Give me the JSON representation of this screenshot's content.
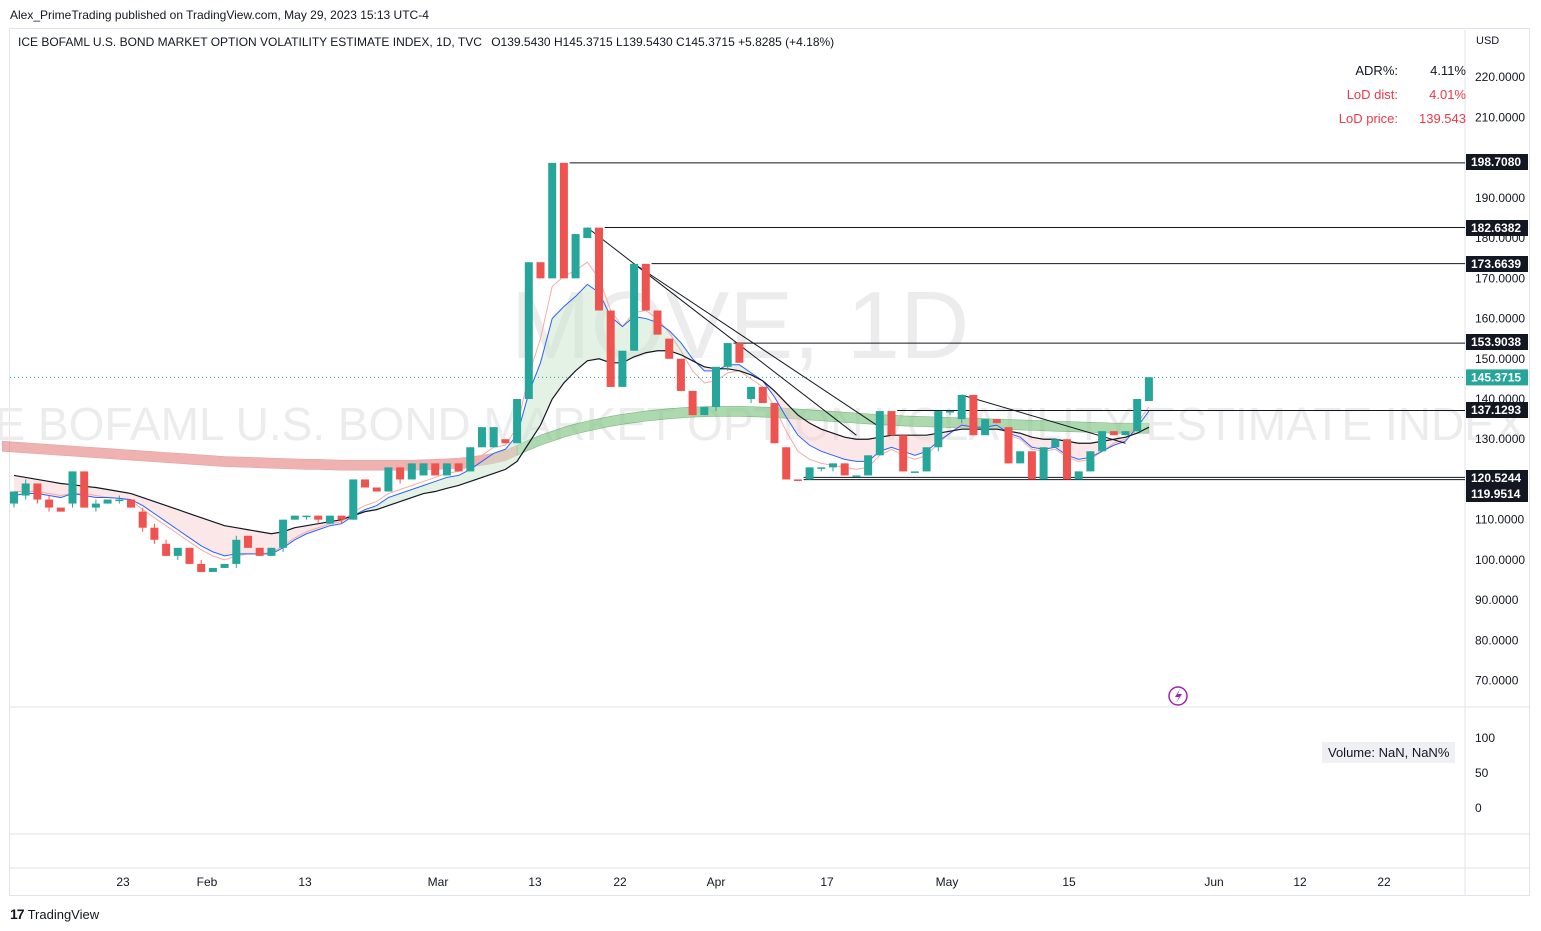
{
  "header": {
    "publisher": "Alex_PrimeTrading published on TradingView.com, May 29, 2023 15:13 UTC-4"
  },
  "legend": {
    "title": "ICE BOFAML U.S. BOND MARKET OPTION VOLATILITY ESTIMATE INDEX, 1D, TVC",
    "ohlc": "O139.5430  H145.3715  L139.5430  C145.3715  +5.8285 (+4.18%)"
  },
  "stats": {
    "adr_label": "ADR%:",
    "adr_value": "4.11%",
    "lod_dist_label": "LoD dist:",
    "lod_dist_value": "4.01%",
    "lod_price_label": "LoD price:",
    "lod_price_value": "139.543"
  },
  "volume_badge": "Volume: NaN, NaN%",
  "watermark": {
    "symbol": "MOVE, 1D",
    "name": "ICE BOFAML U.S. BOND MARKET OPTION VOLATILITY ESTIMATE INDEX"
  },
  "brand": {
    "logo": "17",
    "name": "TradingView"
  },
  "colors": {
    "up": "#26a69a",
    "down": "#ef5350",
    "ma_black": "#131722",
    "ma_blue": "#2962ff",
    "ma_red": "#f7a9a7",
    "band_green": "#81c784",
    "band_red": "#e57373",
    "last_price": "#26a69a"
  },
  "chart_data": {
    "type": "candlestick",
    "currency": "USD",
    "price_axis": {
      "ticks": [
        "220.0000",
        "210.0000",
        "190.0000",
        "180.0000",
        "170.0000",
        "160.0000",
        "150.0000",
        "140.0000",
        "130.0000",
        "110.0000",
        "100.0000",
        "90.0000",
        "80.0000",
        "70.0000"
      ],
      "range": [
        65,
        230
      ]
    },
    "volume_axis": {
      "ticks": [
        "100",
        "50",
        "0"
      ]
    },
    "time_axis": [
      "23",
      "Feb",
      "13",
      "Mar",
      "13",
      "22",
      "Apr",
      "17",
      "May",
      "15",
      "Jun",
      "12",
      "22"
    ],
    "levels": [
      {
        "label": "198.7080",
        "value": 198.708
      },
      {
        "label": "182.6382",
        "value": 182.638
      },
      {
        "label": "173.6639",
        "value": 173.664
      },
      {
        "label": "153.9038",
        "value": 153.904
      },
      {
        "label": "137.1293",
        "value": 137.129
      },
      {
        "label": "120.5244",
        "value": 120.524
      },
      {
        "label": "119.9514",
        "value": 119.951
      }
    ],
    "last_price": {
      "label": "145.3715",
      "value": 145.3715
    },
    "candles": [
      {
        "o": 114,
        "h": 117,
        "l": 113,
        "c": 117
      },
      {
        "o": 116,
        "h": 120,
        "l": 115,
        "c": 119
      },
      {
        "o": 119,
        "h": 119,
        "l": 114,
        "c": 115
      },
      {
        "o": 115,
        "h": 116,
        "l": 112,
        "c": 113
      },
      {
        "o": 113,
        "h": 113,
        "l": 112,
        "c": 112
      },
      {
        "o": 114,
        "h": 122,
        "l": 113,
        "c": 122
      },
      {
        "o": 122,
        "h": 122,
        "l": 113,
        "c": 113
      },
      {
        "o": 113,
        "h": 115,
        "l": 112,
        "c": 114
      },
      {
        "o": 114,
        "h": 115,
        "l": 114,
        "c": 115
      },
      {
        "o": 115,
        "h": 116,
        "l": 114,
        "c": 115
      },
      {
        "o": 115,
        "h": 115,
        "l": 113,
        "c": 113
      },
      {
        "o": 112,
        "h": 113,
        "l": 107,
        "c": 108
      },
      {
        "o": 108,
        "h": 109,
        "l": 104,
        "c": 105
      },
      {
        "o": 104,
        "h": 105,
        "l": 101,
        "c": 101
      },
      {
        "o": 101,
        "h": 103,
        "l": 100,
        "c": 103
      },
      {
        "o": 103,
        "h": 103,
        "l": 99,
        "c": 99
      },
      {
        "o": 99,
        "h": 100,
        "l": 97,
        "c": 97
      },
      {
        "o": 97,
        "h": 98,
        "l": 97,
        "c": 98
      },
      {
        "o": 98,
        "h": 99,
        "l": 98,
        "c": 99
      },
      {
        "o": 99,
        "h": 106,
        "l": 98,
        "c": 105
      },
      {
        "o": 106,
        "h": 106,
        "l": 103,
        "c": 103
      },
      {
        "o": 103,
        "h": 103,
        "l": 101,
        "c": 101
      },
      {
        "o": 101,
        "h": 103,
        "l": 101,
        "c": 103
      },
      {
        "o": 103,
        "h": 110,
        "l": 102,
        "c": 110
      },
      {
        "o": 110,
        "h": 111,
        "l": 110,
        "c": 111
      },
      {
        "o": 111,
        "h": 111,
        "l": 110,
        "c": 111
      },
      {
        "o": 111,
        "h": 111,
        "l": 109,
        "c": 110
      },
      {
        "o": 109,
        "h": 111,
        "l": 109,
        "c": 111
      },
      {
        "o": 111,
        "h": 111,
        "l": 109,
        "c": 110
      },
      {
        "o": 110,
        "h": 120,
        "l": 110,
        "c": 120
      },
      {
        "o": 120,
        "h": 120,
        "l": 118,
        "c": 118
      },
      {
        "o": 118,
        "h": 118,
        "l": 117,
        "c": 117
      },
      {
        "o": 117,
        "h": 123,
        "l": 117,
        "c": 123
      },
      {
        "o": 123,
        "h": 123,
        "l": 119,
        "c": 120
      },
      {
        "o": 120,
        "h": 124,
        "l": 120,
        "c": 124
      },
      {
        "o": 121,
        "h": 124,
        "l": 121,
        "c": 124
      },
      {
        "o": 124,
        "h": 124,
        "l": 121,
        "c": 121
      },
      {
        "o": 121,
        "h": 124,
        "l": 121,
        "c": 124
      },
      {
        "o": 124,
        "h": 124,
        "l": 122,
        "c": 122
      },
      {
        "o": 122,
        "h": 128,
        "l": 122,
        "c": 128
      },
      {
        "o": 128,
        "h": 133,
        "l": 128,
        "c": 133
      },
      {
        "o": 128,
        "h": 133,
        "l": 128,
        "c": 133
      },
      {
        "o": 130,
        "h": 130,
        "l": 129,
        "c": 129
      },
      {
        "o": 129,
        "h": 140,
        "l": 129,
        "c": 140
      },
      {
        "o": 140,
        "h": 174,
        "l": 140,
        "c": 174
      },
      {
        "o": 174,
        "h": 174,
        "l": 170,
        "c": 170
      },
      {
        "o": 170,
        "h": 198.7,
        "l": 170,
        "c": 198.7
      },
      {
        "o": 198.7,
        "h": 198.7,
        "l": 170,
        "c": 170
      },
      {
        "o": 170,
        "h": 181,
        "l": 170,
        "c": 181
      },
      {
        "o": 180,
        "h": 182.6,
        "l": 180,
        "c": 182.6
      },
      {
        "o": 182.6,
        "h": 182.6,
        "l": 162,
        "c": 162
      },
      {
        "o": 162,
        "h": 162,
        "l": 143,
        "c": 143
      },
      {
        "o": 143,
        "h": 152,
        "l": 143,
        "c": 152
      },
      {
        "o": 152,
        "h": 173.6,
        "l": 152,
        "c": 173.6
      },
      {
        "o": 173.6,
        "h": 173.6,
        "l": 162,
        "c": 162
      },
      {
        "o": 162,
        "h": 162,
        "l": 156,
        "c": 156
      },
      {
        "o": 155,
        "h": 155,
        "l": 150,
        "c": 150
      },
      {
        "o": 150,
        "h": 150,
        "l": 142,
        "c": 142
      },
      {
        "o": 142,
        "h": 142,
        "l": 136,
        "c": 136
      },
      {
        "o": 136,
        "h": 138,
        "l": 136,
        "c": 138
      },
      {
        "o": 138,
        "h": 148,
        "l": 137,
        "c": 148
      },
      {
        "o": 148,
        "h": 153.9,
        "l": 147,
        "c": 153.9
      },
      {
        "o": 153.9,
        "h": 153.9,
        "l": 149,
        "c": 149
      },
      {
        "o": 140,
        "h": 143,
        "l": 139,
        "c": 143
      },
      {
        "o": 143,
        "h": 143,
        "l": 139,
        "c": 139
      },
      {
        "o": 139,
        "h": 139,
        "l": 129,
        "c": 129
      },
      {
        "o": 128,
        "h": 128,
        "l": 120,
        "c": 120
      },
      {
        "o": 120,
        "h": 120,
        "l": 119.9,
        "c": 119.9
      },
      {
        "o": 120,
        "h": 123,
        "l": 119.9,
        "c": 123
      },
      {
        "o": 123,
        "h": 123,
        "l": 122,
        "c": 123
      },
      {
        "o": 123,
        "h": 124,
        "l": 122,
        "c": 124
      },
      {
        "o": 124,
        "h": 124,
        "l": 121,
        "c": 121
      },
      {
        "o": 121,
        "h": 121,
        "l": 121,
        "c": 121
      },
      {
        "o": 121,
        "h": 126,
        "l": 121,
        "c": 126
      },
      {
        "o": 126,
        "h": 137,
        "l": 126,
        "c": 137
      },
      {
        "o": 137,
        "h": 137,
        "l": 131,
        "c": 131
      },
      {
        "o": 131,
        "h": 131,
        "l": 122,
        "c": 122
      },
      {
        "o": 122,
        "h": 122,
        "l": 122,
        "c": 122
      },
      {
        "o": 122,
        "h": 128,
        "l": 122,
        "c": 128
      },
      {
        "o": 128,
        "h": 137,
        "l": 127,
        "c": 137
      },
      {
        "o": 137,
        "h": 137,
        "l": 136,
        "c": 137
      },
      {
        "o": 135,
        "h": 141,
        "l": 134,
        "c": 141
      },
      {
        "o": 141,
        "h": 141,
        "l": 131,
        "c": 131
      },
      {
        "o": 131,
        "h": 135,
        "l": 131,
        "c": 135
      },
      {
        "o": 135,
        "h": 135,
        "l": 134,
        "c": 134
      },
      {
        "o": 133,
        "h": 133,
        "l": 124,
        "c": 124
      },
      {
        "o": 124,
        "h": 127,
        "l": 124,
        "c": 127
      },
      {
        "o": 127,
        "h": 127,
        "l": 120,
        "c": 120
      },
      {
        "o": 120,
        "h": 128,
        "l": 120,
        "c": 128
      },
      {
        "o": 128,
        "h": 130,
        "l": 128,
        "c": 130
      },
      {
        "o": 130,
        "h": 130,
        "l": 120,
        "c": 120
      },
      {
        "o": 120,
        "h": 122,
        "l": 120,
        "c": 122
      },
      {
        "o": 122,
        "h": 127,
        "l": 122,
        "c": 127
      },
      {
        "o": 127,
        "h": 132,
        "l": 127,
        "c": 132
      },
      {
        "o": 132,
        "h": 132,
        "l": 131,
        "c": 131
      },
      {
        "o": 131,
        "h": 132,
        "l": 131,
        "c": 132
      },
      {
        "o": 132,
        "h": 140,
        "l": 132,
        "c": 140
      },
      {
        "o": 139.5,
        "h": 145.4,
        "l": 139.5,
        "c": 145.4
      }
    ],
    "ma_fast": [
      116,
      116.5,
      116.5,
      116,
      115.5,
      116.5,
      116,
      115.5,
      115.5,
      115.3,
      115,
      113.5,
      111.5,
      109.5,
      107.5,
      105.5,
      103.5,
      102,
      101,
      101.5,
      101.5,
      101.5,
      101.5,
      103,
      105,
      106.5,
      107.5,
      108.5,
      109,
      111,
      112.5,
      113.5,
      115.5,
      116.5,
      117.5,
      118.5,
      119.5,
      120.5,
      121,
      122.5,
      124.5,
      126.5,
      127.5,
      131,
      141.5,
      149,
      160,
      163,
      165.5,
      168.5,
      166.5,
      160.5,
      158,
      160.5,
      160,
      159,
      157,
      154,
      150,
      147,
      147,
      148.5,
      148.5,
      146.5,
      144.5,
      140.5,
      135.5,
      131,
      128.5,
      127,
      126,
      125,
      124.5,
      124.5,
      127,
      128,
      127,
      126,
      127,
      129.5,
      131.5,
      133.5,
      133,
      133,
      133.5,
      131.5,
      130.5,
      128,
      127.5,
      128,
      126,
      125,
      125.5,
      127,
      128.5,
      129.5,
      133,
      137
    ],
    "ma_slow": [
      121,
      120.5,
      120,
      119.5,
      119,
      118.7,
      118.3,
      118,
      117.5,
      117,
      116.5,
      115.5,
      114.5,
      113.5,
      112.5,
      111.5,
      110.5,
      109.5,
      108.5,
      108,
      107.5,
      107,
      106.5,
      107,
      108,
      108.5,
      109,
      109.5,
      110,
      111,
      112,
      112.5,
      113.5,
      114.5,
      115.5,
      116.5,
      117,
      117.8,
      118.5,
      119.5,
      120.5,
      121.5,
      122.5,
      124.5,
      129,
      133.5,
      140,
      144,
      147,
      149.5,
      150,
      149,
      149,
      150.5,
      151.5,
      152,
      152,
      151,
      149.5,
      148,
      147.5,
      147.5,
      147,
      146,
      144.5,
      142,
      139,
      136,
      134,
      132.5,
      131.5,
      130.5,
      130,
      130,
      130.5,
      131,
      131,
      131,
      131,
      131.5,
      132,
      132.5,
      132.5,
      132.5,
      132.5,
      132,
      131.5,
      130.5,
      130,
      130,
      129.5,
      129,
      129,
      129.5,
      130,
      130.5,
      131.5,
      133
    ],
    "ma_thin_red": [
      117,
      117,
      117,
      116.5,
      116,
      116.5,
      116.5,
      116,
      115.5,
      115.3,
      114.8,
      112.5,
      110.5,
      108.5,
      106.5,
      104.5,
      102.5,
      101,
      100,
      101,
      101.5,
      101.5,
      101.8,
      103.5,
      105.5,
      107,
      108,
      109,
      109.5,
      112,
      113.5,
      114.5,
      116.5,
      117.5,
      118.5,
      119.5,
      120.5,
      121.5,
      122,
      123.5,
      126,
      128,
      128.5,
      133,
      146,
      155,
      168,
      170.5,
      172,
      174,
      170,
      162,
      158,
      161.5,
      162,
      160,
      156.5,
      152,
      147,
      144,
      144.5,
      146.5,
      147,
      145,
      143,
      138,
      132,
      127,
      125,
      124,
      123.5,
      123,
      122.5,
      123,
      126,
      127.5,
      126,
      125,
      126,
      129,
      131.5,
      134,
      133,
      133,
      133.5,
      131,
      130,
      127.5,
      127,
      127.5,
      125.5,
      124.5,
      125,
      127,
      129,
      130,
      134,
      138
    ],
    "band_upper": [
      129.5,
      129.3,
      129.1,
      128.9,
      128.7,
      128.5,
      128.3,
      128.1,
      127.9,
      127.7,
      127.5,
      127.3,
      127.1,
      126.9,
      126.7,
      126.5,
      126.3,
      126.1,
      125.9,
      125.7,
      125.6,
      125.5,
      125.4,
      125.3,
      125.2,
      125.1,
      125,
      125,
      124.9,
      124.8,
      124.8,
      124.8,
      124.8,
      124.8,
      124.8,
      124.8,
      124.9,
      125,
      125.1,
      125.3,
      125.6,
      126,
      126.5,
      127.2,
      128.5,
      129.8,
      131,
      132,
      133,
      133.8,
      134.5,
      135.1,
      135.7,
      136.2,
      136.6,
      137,
      137.3,
      137.6,
      137.8,
      138,
      138.1,
      138.2,
      138.2,
      138.2,
      138.1,
      138,
      137.9,
      137.7,
      137.5,
      137.3,
      137.1,
      136.9,
      136.7,
      136.5,
      136.3,
      136.1,
      136,
      135.8,
      135.7,
      135.6,
      135.5,
      135.4,
      135.3,
      135.2,
      135.1,
      135,
      134.9,
      134.8,
      134.7,
      134.6,
      134.5,
      134.4,
      134.3,
      134.2,
      134.1,
      134,
      134,
      134,
      134
    ],
    "band_lower": [
      127,
      126.8,
      126.6,
      126.4,
      126.2,
      126,
      125.8,
      125.6,
      125.4,
      125.2,
      125,
      124.8,
      124.6,
      124.4,
      124.2,
      124,
      123.8,
      123.6,
      123.4,
      123.2,
      123.1,
      123,
      122.9,
      122.8,
      122.7,
      122.6,
      122.5,
      122.5,
      122.4,
      122.3,
      122.3,
      122.3,
      122.3,
      122.3,
      122.3,
      122.3,
      122.4,
      122.5,
      122.6,
      122.8,
      123.1,
      123.5,
      124,
      124.7,
      126,
      127.3,
      128.5,
      129.5,
      130.5,
      131.3,
      132,
      132.6,
      133.2,
      133.7,
      134.1,
      134.5,
      134.8,
      135.1,
      135.3,
      135.5,
      135.6,
      135.7,
      135.7,
      135.7,
      135.6,
      135.5,
      135.4,
      135.2,
      135,
      134.8,
      134.6,
      134.4,
      134.2,
      134,
      133.8,
      133.6,
      133.5,
      133.3,
      133.2,
      133.1,
      133,
      132.9,
      132.8,
      132.7,
      132.6,
      132.5,
      132.4,
      132.3,
      132.2,
      132.1,
      132,
      131.9,
      131.8,
      131.7,
      131.6,
      131.5,
      131.5,
      131.5,
      131.5
    ],
    "trendlines": [
      {
        "from": {
          "i": 49,
          "p": 182.6
        },
        "to": {
          "i": 72,
          "p": 131
        }
      },
      {
        "from": {
          "i": 53,
          "p": 173.6
        },
        "to": {
          "i": 74,
          "p": 133
        }
      },
      {
        "from": {
          "i": 81,
          "p": 141
        },
        "to": {
          "i": 95,
          "p": 129
        }
      }
    ]
  }
}
